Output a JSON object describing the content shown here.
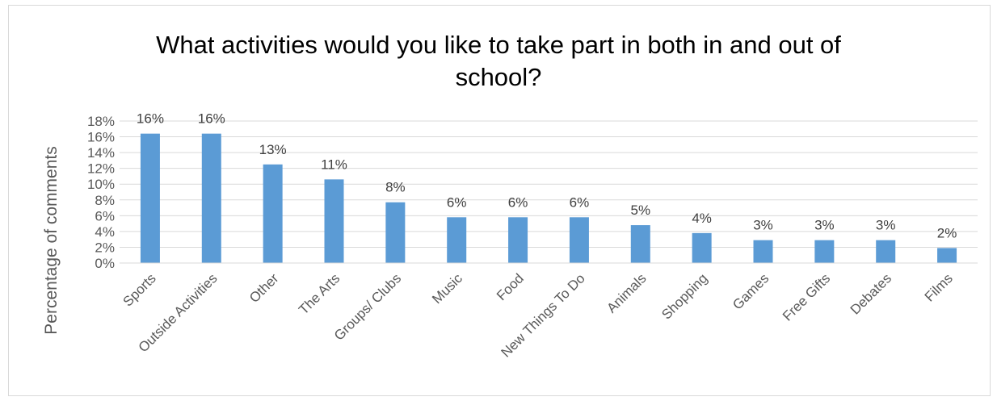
{
  "chart_data": {
    "type": "bar",
    "title_line1": "What activities would you like to take part in both in and out of",
    "title_line2": "school?",
    "xlabel": "",
    "ylabel": "Percentage of comments",
    "ylim": [
      0,
      18
    ],
    "yticks": [
      "0%",
      "2%",
      "4%",
      "6%",
      "8%",
      "10%",
      "12%",
      "14%",
      "16%",
      "18%"
    ],
    "grid": true,
    "legend": "none",
    "bar_color": "#5b9bd5",
    "categories": [
      "Sports",
      "Outside Activities",
      "Other",
      "The Arts",
      "Groups/ Clubs",
      "Music",
      "Food",
      "New Things To Do",
      "Animals",
      "Shopping",
      "Games",
      "Free Gifts",
      "Debates",
      "Films"
    ],
    "values": [
      16.4,
      16.4,
      12.5,
      10.6,
      7.7,
      5.8,
      5.8,
      5.8,
      4.8,
      3.8,
      2.9,
      2.9,
      2.9,
      1.9
    ],
    "labels": [
      "16%",
      "16%",
      "13%",
      "11%",
      "8%",
      "6%",
      "6%",
      "6%",
      "5%",
      "4%",
      "3%",
      "3%",
      "3%",
      "2%"
    ]
  }
}
